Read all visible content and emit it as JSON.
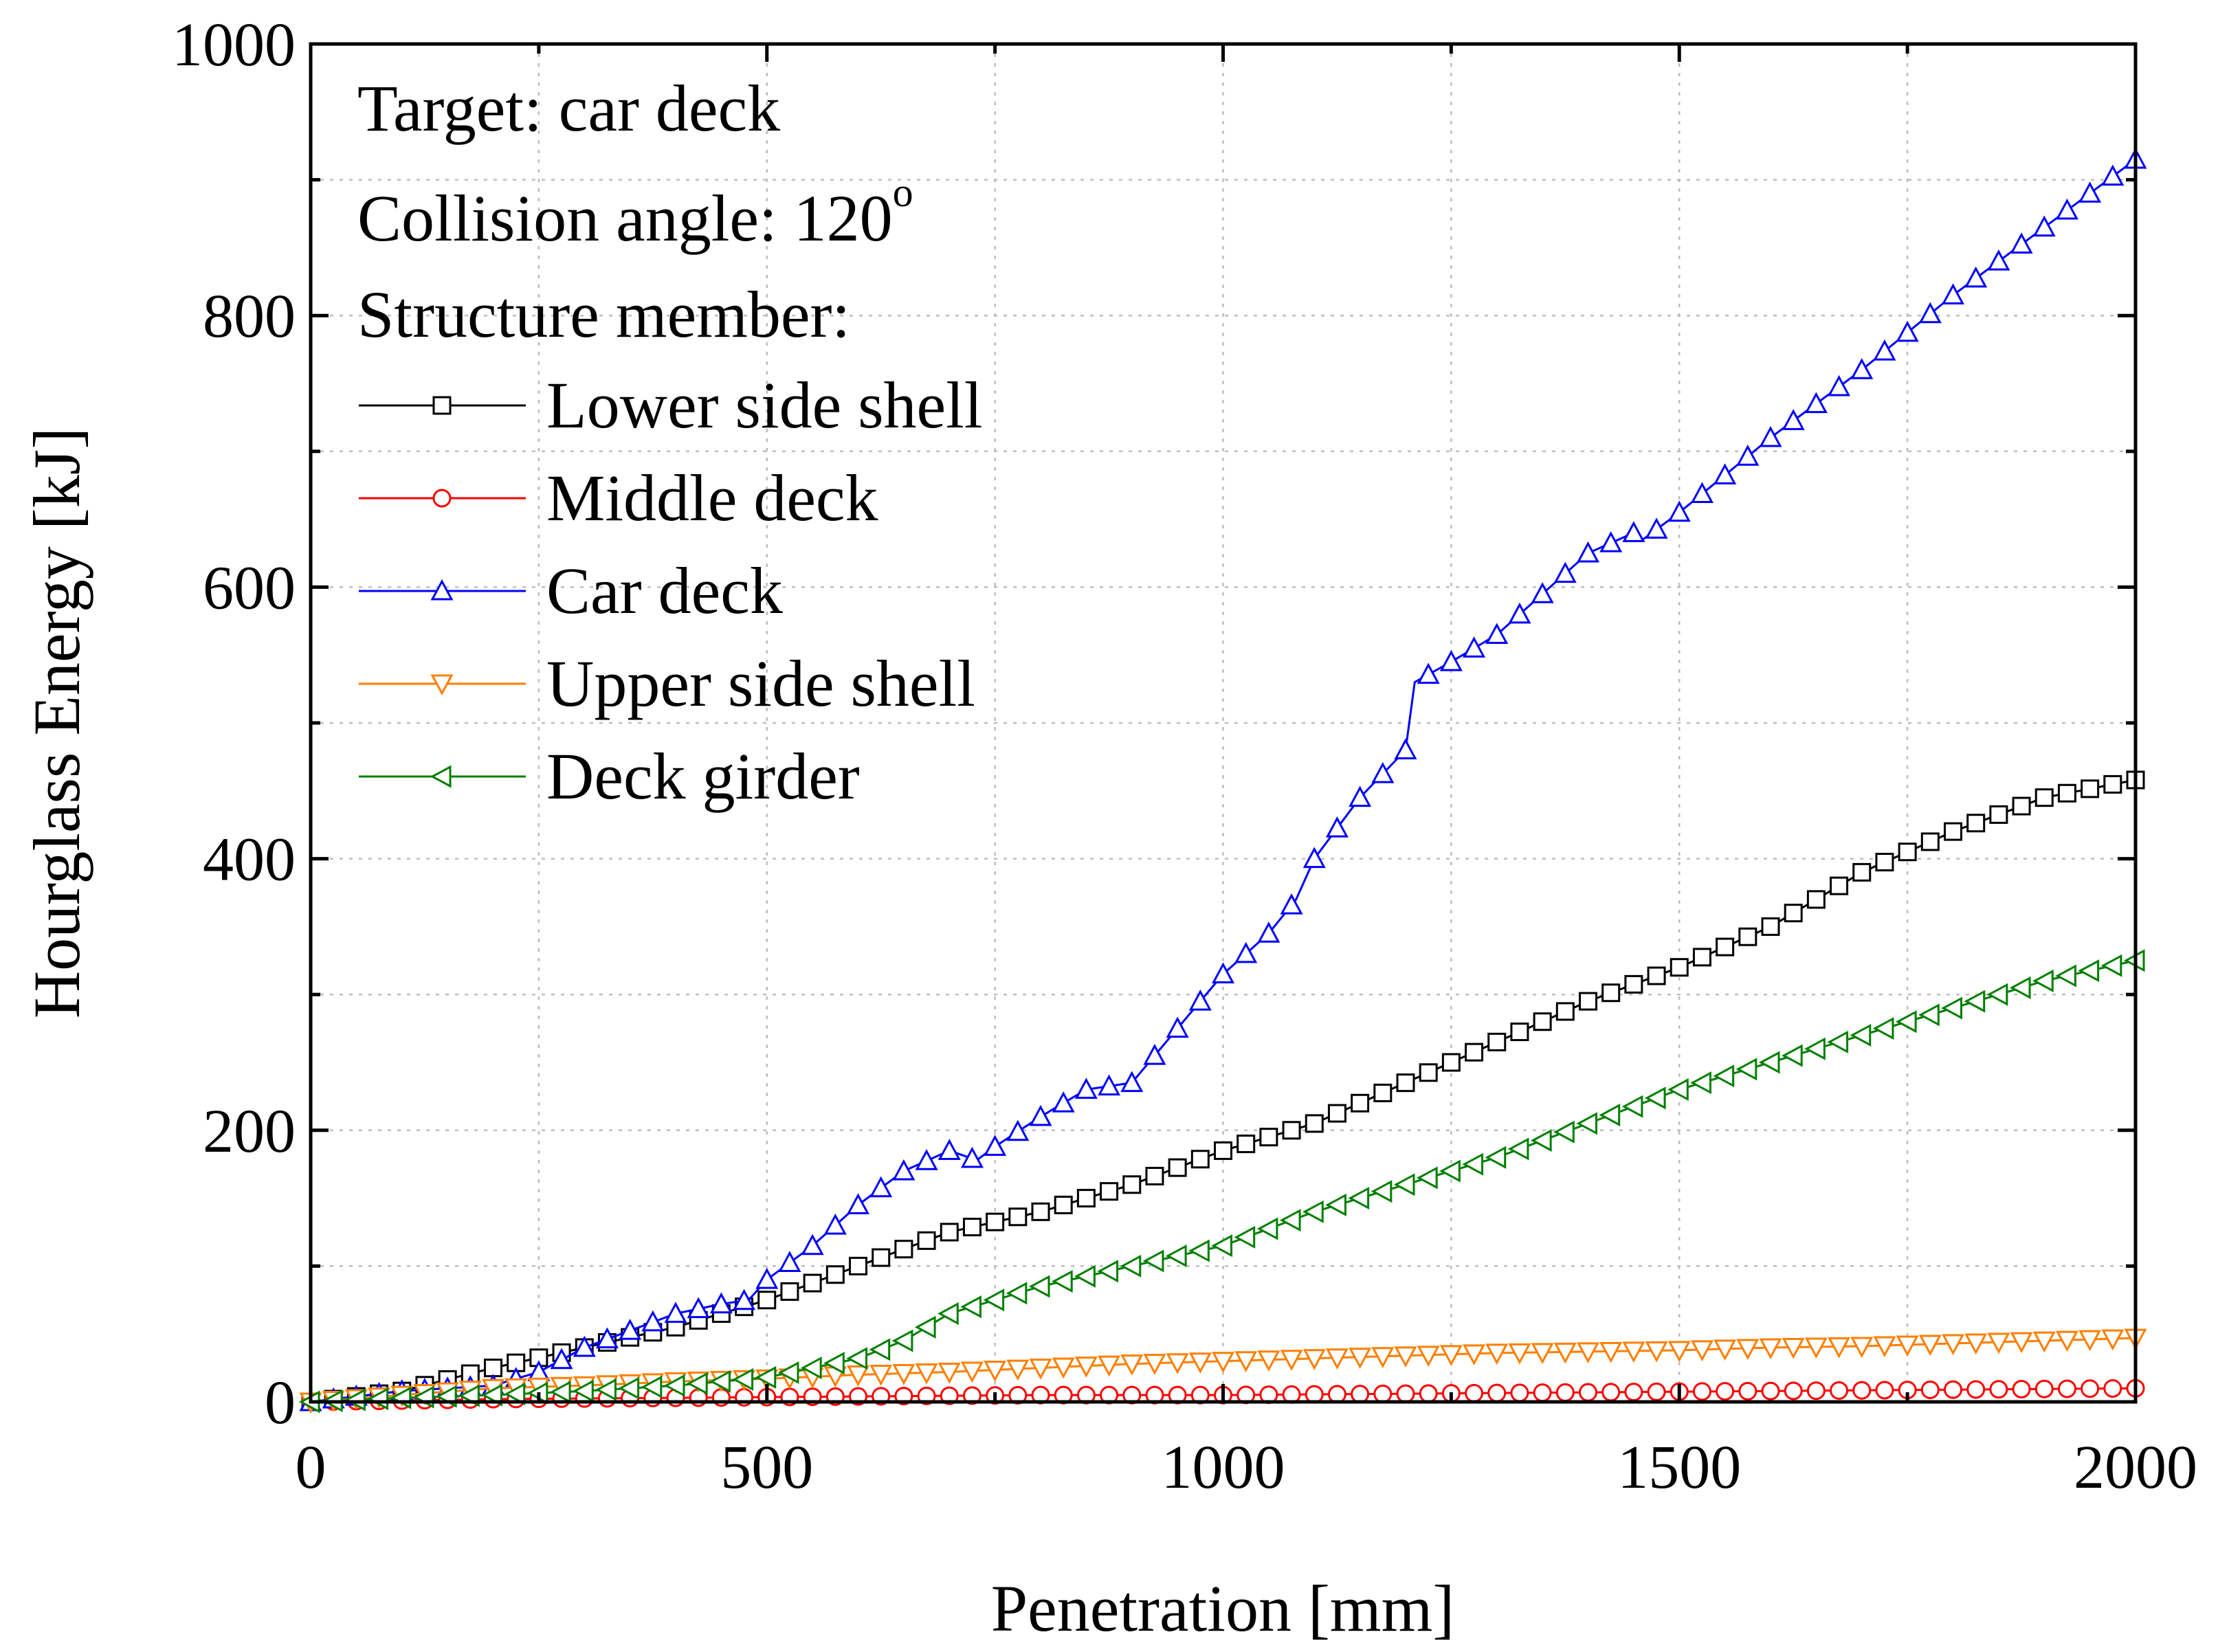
{
  "chart_data": {
    "type": "line",
    "title": "",
    "xlabel": "Penetration [mm]",
    "ylabel": "Hourglass Energy [kJ]",
    "xlim": [
      0,
      2000
    ],
    "ylim": [
      0,
      1000
    ],
    "xticks": [
      0,
      500,
      1000,
      1500,
      2000
    ],
    "yticks": [
      0,
      200,
      400,
      600,
      800,
      1000
    ],
    "x_tick_labels": [
      "0",
      "500",
      "1000",
      "1500",
      "2000"
    ],
    "y_tick_labels": [
      "0",
      "200",
      "400",
      "600",
      "800",
      "1000"
    ],
    "grid": true,
    "annotations": {
      "target": "Target: car deck",
      "angle": "Collision angle: 120",
      "angle_degree": "o",
      "legend_heading": "Structure member:"
    },
    "legend_position": "top-left",
    "series": [
      {
        "name": "Lower side shell",
        "color": "#000000",
        "marker": "square",
        "x": [
          0,
          100,
          200,
          300,
          400,
          500,
          600,
          700,
          800,
          900,
          1000,
          1100,
          1200,
          1300,
          1400,
          1500,
          1600,
          1700,
          1800,
          1900,
          2000
        ],
        "values": [
          0,
          8,
          25,
          40,
          55,
          75,
          100,
          125,
          140,
          160,
          185,
          205,
          235,
          265,
          295,
          320,
          350,
          390,
          420,
          445,
          458
        ]
      },
      {
        "name": "Middle deck",
        "color": "#ff0000",
        "marker": "circle",
        "x": [
          0,
          200,
          400,
          600,
          800,
          1000,
          1200,
          1400,
          1600,
          1800,
          2000
        ],
        "values": [
          0,
          2,
          3,
          4,
          5,
          5,
          6,
          7,
          8,
          9,
          10
        ]
      },
      {
        "name": "Car deck",
        "color": "#0000ff",
        "marker": "triangle-up",
        "x": [
          0,
          100,
          200,
          250,
          300,
          400,
          450,
          480,
          500,
          550,
          600,
          650,
          700,
          730,
          750,
          800,
          850,
          900,
          950,
          1000,
          1050,
          1080,
          1100,
          1150,
          1200,
          1210,
          1250,
          1300,
          1350,
          1400,
          1450,
          1460,
          1500,
          1600,
          1700,
          1800,
          1900,
          2000
        ],
        "values": [
          0,
          8,
          12,
          22,
          40,
          65,
          72,
          75,
          90,
          115,
          145,
          170,
          185,
          178,
          188,
          210,
          230,
          235,
          275,
          315,
          345,
          370,
          400,
          445,
          480,
          530,
          545,
          565,
          595,
          625,
          640,
          635,
          655,
          710,
          760,
          815,
          865,
          915
        ]
      },
      {
        "name": "Upper side shell",
        "color": "#ff7f00",
        "marker": "triangle-down",
        "x": [
          0,
          100,
          200,
          300,
          400,
          500,
          600,
          700,
          800,
          900,
          1000,
          1100,
          1200,
          1300,
          1400,
          1500,
          1600,
          1700,
          1800,
          1900,
          2000
        ],
        "values": [
          0,
          5,
          10,
          12,
          15,
          17,
          20,
          22,
          25,
          28,
          30,
          32,
          34,
          36,
          37,
          38,
          40,
          41,
          43,
          45,
          47
        ]
      },
      {
        "name": "Deck girder",
        "color": "#007f00",
        "marker": "triangle-left",
        "x": [
          0,
          100,
          200,
          300,
          400,
          500,
          550,
          600,
          650,
          700,
          800,
          900,
          1000,
          1100,
          1200,
          1300,
          1400,
          1500,
          1600,
          1700,
          1800,
          1900,
          2000
        ],
        "values": [
          0,
          3,
          5,
          8,
          12,
          18,
          25,
          32,
          45,
          65,
          85,
          100,
          115,
          140,
          160,
          180,
          205,
          230,
          250,
          270,
          290,
          310,
          325
        ]
      }
    ]
  }
}
